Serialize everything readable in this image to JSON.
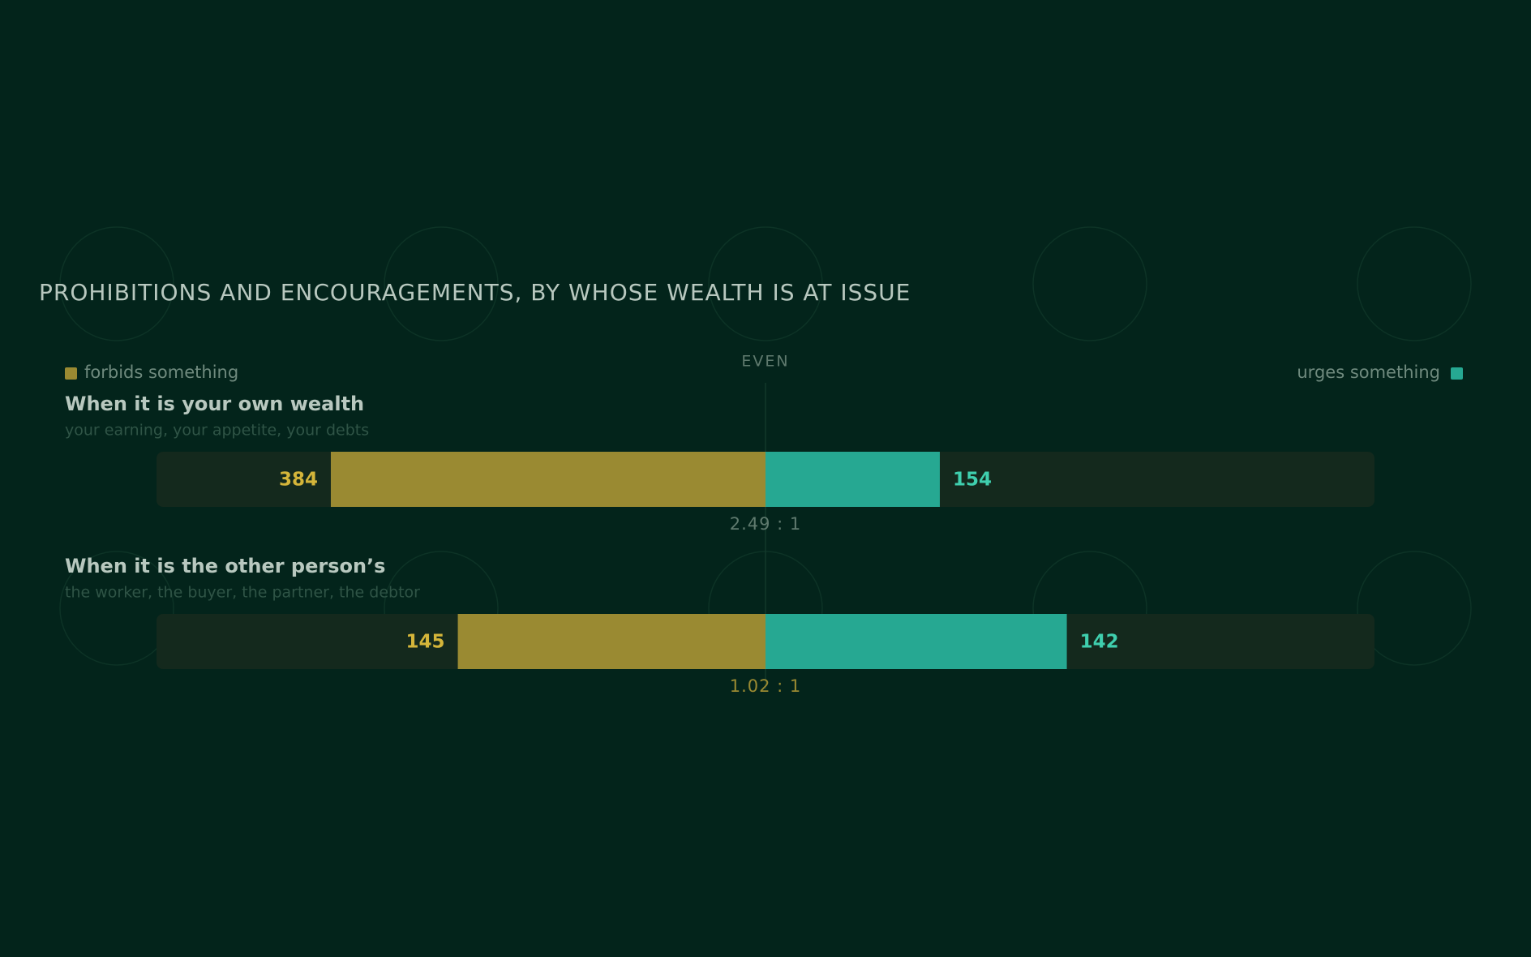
{
  "chart_data": {
    "type": "diverging_bar",
    "title": "PROHIBITIONS AND ENCOURAGEMENTS, BY WHOSE WEALTH IS AT ISSUE",
    "center_label": "EVEN",
    "categories": [
      "When it is your own wealth",
      "When it is the other person’s"
    ],
    "subtitles": [
      "your earning, your appetite, your debts",
      "the worker, the buyer, the partner, the debtor"
    ],
    "series": [
      {
        "name": "forbids something",
        "color": "#9a8a32",
        "label_color": "#d4b53a",
        "values": [
          384,
          145
        ]
      },
      {
        "name": "urges something",
        "color": "#26a892",
        "label_color": "#3fcfae",
        "values": [
          154,
          142
        ]
      }
    ],
    "ratio_labels": [
      "2.49 : 1",
      "1.02 : 1"
    ],
    "ratio_colors": [
      "#5f7a6e",
      "#9a8a32"
    ]
  }
}
